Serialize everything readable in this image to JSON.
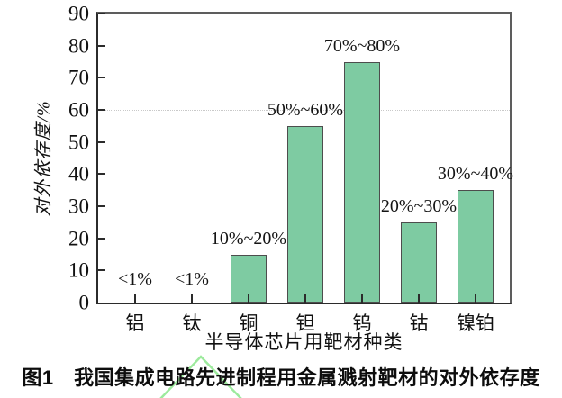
{
  "figure": {
    "caption": "图1　我国集成电路先进制程用金属溅射靶材的对外依存度"
  },
  "chart_data": {
    "type": "bar",
    "title": "",
    "categories": [
      "铝",
      "钛",
      "铜",
      "钽",
      "钨",
      "钴",
      "镍铂"
    ],
    "values": [
      0,
      0,
      15,
      55,
      75,
      25,
      35
    ],
    "bar_labels": [
      "<1%",
      "<1%",
      "10%~20%",
      "50%~60%",
      "70%~80%",
      "20%~30%",
      "30%~40%"
    ],
    "xlabel": "半导体芯片用靶材种类",
    "ylabel": "对外依存度/%",
    "ylim": [
      0,
      90
    ],
    "yticks": [
      0,
      10,
      20,
      30,
      40,
      50,
      60,
      70,
      80,
      90
    ],
    "gridlines_y": [
      60
    ],
    "legend": "none",
    "colors": {
      "bar_fill": "#7ecba2",
      "bar_border": "#4d4d4d",
      "axis": "#2b2b2b",
      "frame": "#5d5d5d",
      "gridline": "#c9c9c9",
      "watermark_green": "#9dea9d",
      "text": "#111111"
    }
  }
}
